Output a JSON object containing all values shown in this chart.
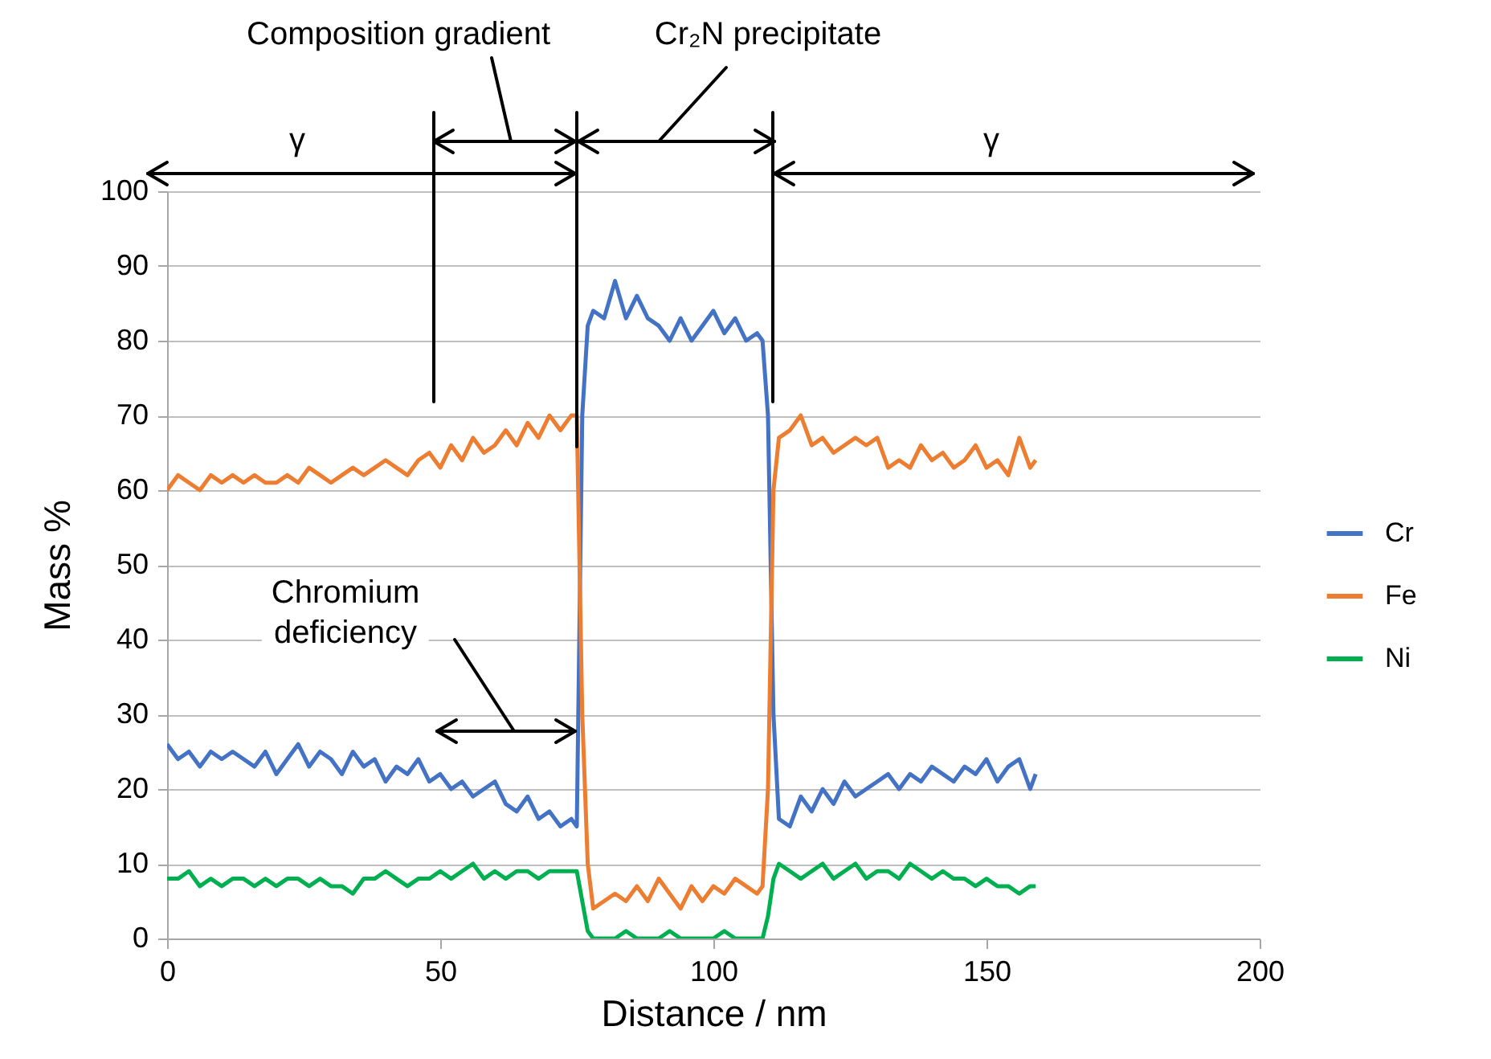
{
  "chart_data": {
    "type": "line",
    "xlabel": "Distance / nm",
    "ylabel": "Mass %",
    "x": [
      0,
      2,
      4,
      6,
      8,
      10,
      12,
      14,
      16,
      18,
      20,
      22,
      24,
      26,
      28,
      30,
      32,
      34,
      36,
      38,
      40,
      42,
      44,
      46,
      48,
      50,
      52,
      54,
      56,
      58,
      60,
      62,
      64,
      66,
      68,
      70,
      72,
      74,
      75,
      76,
      77,
      78,
      80,
      82,
      84,
      86,
      88,
      90,
      92,
      94,
      96,
      98,
      100,
      102,
      104,
      106,
      108,
      109,
      110,
      111,
      112,
      114,
      116,
      118,
      120,
      122,
      124,
      126,
      128,
      130,
      132,
      134,
      136,
      138,
      140,
      142,
      144,
      146,
      148,
      150,
      152,
      154,
      156,
      158,
      159
    ],
    "series": [
      {
        "name": "Cr",
        "color": "#4472c4",
        "values": [
          26,
          24,
          25,
          23,
          25,
          24,
          25,
          24,
          23,
          25,
          22,
          24,
          26,
          23,
          25,
          24,
          22,
          25,
          23,
          24,
          21,
          23,
          22,
          24,
          21,
          22,
          20,
          21,
          19,
          20,
          21,
          18,
          17,
          19,
          16,
          17,
          15,
          16,
          15,
          70,
          82,
          84,
          83,
          88,
          83,
          86,
          83,
          82,
          80,
          83,
          80,
          82,
          84,
          81,
          83,
          80,
          81,
          80,
          70,
          30,
          16,
          15,
          19,
          17,
          20,
          18,
          21,
          19,
          20,
          21,
          22,
          20,
          22,
          21,
          23,
          22,
          21,
          23,
          22,
          24,
          21,
          23,
          24,
          20,
          22
        ]
      },
      {
        "name": "Fe",
        "color": "#ed7d31",
        "values": [
          60,
          62,
          61,
          60,
          62,
          61,
          62,
          61,
          62,
          61,
          61,
          62,
          61,
          63,
          62,
          61,
          62,
          63,
          62,
          63,
          64,
          63,
          62,
          64,
          65,
          63,
          66,
          64,
          67,
          65,
          66,
          68,
          66,
          69,
          67,
          70,
          68,
          70,
          70,
          30,
          10,
          4,
          5,
          6,
          5,
          7,
          5,
          8,
          6,
          4,
          7,
          5,
          7,
          6,
          8,
          7,
          6,
          7,
          20,
          60,
          67,
          68,
          70,
          66,
          67,
          65,
          66,
          67,
          66,
          67,
          63,
          64,
          63,
          66,
          64,
          65,
          63,
          64,
          66,
          63,
          64,
          62,
          67,
          63,
          64
        ]
      },
      {
        "name": "Ni",
        "color": "#00b050",
        "values": [
          8,
          8,
          9,
          7,
          8,
          7,
          8,
          8,
          7,
          8,
          7,
          8,
          8,
          7,
          8,
          7,
          7,
          6,
          8,
          8,
          9,
          8,
          7,
          8,
          8,
          9,
          8,
          9,
          10,
          8,
          9,
          8,
          9,
          9,
          8,
          9,
          9,
          9,
          9,
          5,
          1,
          0,
          0,
          0,
          1,
          0,
          0,
          0,
          1,
          0,
          0,
          0,
          0,
          1,
          0,
          0,
          0,
          0,
          3,
          8,
          10,
          9,
          8,
          9,
          10,
          8,
          9,
          10,
          8,
          9,
          9,
          8,
          10,
          9,
          8,
          9,
          8,
          8,
          7,
          8,
          7,
          7,
          6,
          7,
          7
        ]
      }
    ],
    "xlim": [
      0,
      200
    ],
    "xticks": [
      0,
      50,
      100,
      150,
      200
    ],
    "ylim": [
      0,
      100
    ],
    "yticks": [
      0,
      10,
      20,
      30,
      40,
      50,
      60,
      70,
      80,
      90,
      100
    ],
    "grid": "y",
    "legend": "right",
    "annotations": [
      "γ",
      "Composition gradient",
      "Cr₂N precipitate",
      "γ",
      "Chromium deficiency"
    ]
  }
}
